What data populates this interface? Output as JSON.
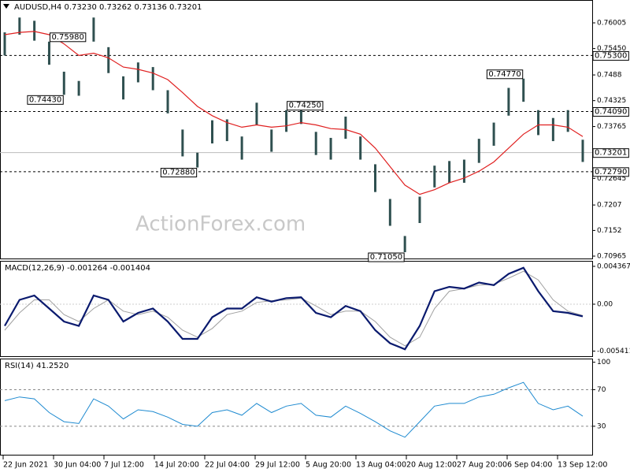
{
  "chart_data": {
    "type": "ohlc",
    "title": "AUDUSD,H4  0.73230 0.73262 0.73136 0.73201",
    "watermark": "ActionForex.com",
    "categories": [
      "22 Jun 2021",
      "30 Jun 04:00",
      "7 Jul 12:00",
      "14 Jul 20:00",
      "22 Jul 04:00",
      "29 Jul 12:00",
      "5 Aug 20:00",
      "13 Aug 04:00",
      "20 Aug 12:00",
      "27 Aug 20:00",
      "6 Sep 04:00",
      "13 Sep 12:00"
    ],
    "high": [
      0.758,
      0.7612,
      0.7605,
      0.756,
      0.7495,
      0.7475,
      0.7612,
      0.7548,
      0.7485,
      0.7515,
      0.7505,
      0.7455,
      0.737,
      0.732,
      0.739,
      0.7392,
      0.7355,
      0.7428,
      0.737,
      0.7412,
      0.7428,
      0.7365,
      0.7352,
      0.7398,
      0.7355,
      0.7295,
      0.722,
      0.714,
      0.7225,
      0.7292,
      0.7302,
      0.7305,
      0.735,
      0.7385,
      0.746,
      0.748,
      0.7412,
      0.7395,
      0.7412,
      0.7348
    ],
    "low": [
      0.753,
      0.7575,
      0.7562,
      0.751,
      0.7445,
      0.7443,
      0.756,
      0.7492,
      0.7435,
      0.7472,
      0.7455,
      0.7405,
      0.7312,
      0.7288,
      0.734,
      0.7345,
      0.7305,
      0.738,
      0.7322,
      0.7365,
      0.7382,
      0.7315,
      0.7305,
      0.735,
      0.7305,
      0.7235,
      0.7162,
      0.7105,
      0.7168,
      0.7245,
      0.7255,
      0.7255,
      0.7298,
      0.7335,
      0.74,
      0.743,
      0.7358,
      0.7345,
      0.7365,
      0.73
    ],
    "ma": {
      "color": "#e02020",
      "values": [
        0.7575,
        0.758,
        0.7582,
        0.7575,
        0.7555,
        0.753,
        0.7535,
        0.7525,
        0.7505,
        0.75,
        0.7492,
        0.7478,
        0.745,
        0.742,
        0.74,
        0.7385,
        0.7375,
        0.738,
        0.7375,
        0.7378,
        0.7385,
        0.738,
        0.7372,
        0.737,
        0.736,
        0.733,
        0.729,
        0.725,
        0.723,
        0.724,
        0.7255,
        0.7265,
        0.728,
        0.73,
        0.733,
        0.736,
        0.738,
        0.738,
        0.7375,
        0.7355
      ]
    },
    "bar_color": "#2f5050",
    "ylim": [
      0.70914,
      0.76499
    ],
    "yticks": [
      {
        "value": 0.76005,
        "label": "0.76005"
      },
      {
        "value": 0.7545,
        "label": "0.75450"
      },
      0.7488,
      0.74325,
      0.73765,
      0.72645,
      0.7207,
      0.7152,
      0.70965
    ],
    "levels": [
      {
        "value": 0.753,
        "label": "0.75300"
      },
      {
        "value": 0.7409,
        "label": "0.74090"
      },
      {
        "value": 0.7279,
        "label": "0.72790"
      }
    ],
    "last": {
      "value": 0.73201,
      "label": "0.73201"
    },
    "annotations": [
      "0.75980",
      "0.74430",
      "0.72880",
      "0.74250",
      "0.74770",
      "0.71050"
    ],
    "macd": {
      "title": "MACD(12,26,9) -0.001264 -0.001404",
      "ylim": [
        -0.006,
        0.005
      ],
      "yticks": [
        0.004367,
        {
          "value": 0,
          "label": "0.00"
        },
        -0.005411
      ],
      "series": [
        {
          "color": "#0a1a6e",
          "values": [
            -0.0025,
            0.0005,
            0.001,
            -0.0005,
            -0.002,
            -0.0025,
            0.001,
            0.0005,
            -0.002,
            -0.001,
            -0.0005,
            -0.002,
            -0.004,
            -0.004,
            -0.0015,
            -0.0005,
            -0.0005,
            0.0008,
            0.0003,
            0.0007,
            0.0008,
            -0.001,
            -0.0015,
            -0.0002,
            -0.0008,
            -0.003,
            -0.0045,
            -0.0052,
            -0.0025,
            0.0015,
            0.002,
            0.0018,
            0.0025,
            0.0022,
            0.0035,
            0.0042,
            0.0015,
            -0.0008,
            -0.001,
            -0.0014
          ]
        },
        {
          "color": "#a0a0a0",
          "values": [
            -0.003,
            -0.001,
            0.0005,
            0.0005,
            -0.0012,
            -0.002,
            -0.0005,
            0.0005,
            -0.0008,
            -0.0012,
            -0.0008,
            -0.0015,
            -0.003,
            -0.0038,
            -0.0028,
            -0.0012,
            -0.0008,
            0.0002,
            0.0004,
            0.0005,
            0.0007,
            -0.0002,
            -0.0012,
            -0.0008,
            -0.0008,
            -0.002,
            -0.0038,
            -0.0048,
            -0.0038,
            -0.0005,
            0.0015,
            0.0018,
            0.0022,
            0.0023,
            0.003,
            0.0038,
            0.0028,
            0.0005,
            -0.0008,
            -0.0013
          ]
        }
      ]
    },
    "rsi": {
      "title": "RSI(14) 41.2520",
      "color": "#1e8ad0",
      "ylim": [
        -2,
        104
      ],
      "yticks": [
        100,
        70,
        30
      ],
      "dashed": [
        70,
        30
      ],
      "values": [
        58,
        62,
        60,
        45,
        35,
        33,
        60,
        52,
        38,
        48,
        46,
        40,
        32,
        30,
        45,
        48,
        42,
        55,
        45,
        52,
        55,
        42,
        40,
        52,
        44,
        35,
        25,
        18,
        35,
        52,
        55,
        55,
        62,
        65,
        72,
        78,
        55,
        48,
        52,
        41
      ]
    }
  }
}
